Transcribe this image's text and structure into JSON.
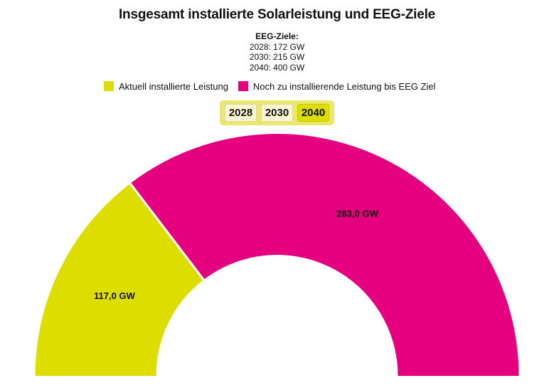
{
  "chart_data": {
    "type": "pie",
    "variant": "semi-donut",
    "title": "Insgesamt installierte Solarleistung und EEG-Ziele",
    "subtitle": {
      "heading": "EEG-Ziele:",
      "lines": [
        "2028: 172 GW",
        "2030: 215 GW",
        "2040: 400 GW"
      ]
    },
    "unit": "GW",
    "selected_target_year": "2040",
    "target_total": 400,
    "categories": [
      "Aktuell installierte Leistung",
      "Noch zu installierende Leistung bis EEG Ziel"
    ],
    "values": [
      117.0,
      283.0
    ],
    "value_labels": [
      "117,0 GW",
      "283,0 GW"
    ],
    "colors": [
      "#dedd00",
      "#e5007f"
    ],
    "legend_position": "top",
    "start_angle_deg": -90,
    "end_angle_deg": 90
  },
  "header": {
    "title": "Insgesamt installierte Solarleistung und EEG-Ziele",
    "subtitle_heading": "EEG-Ziele:",
    "subtitle_lines": [
      "2028: 172 GW",
      "2030: 215 GW",
      "2040: 400 GW"
    ]
  },
  "legend": {
    "items": [
      {
        "label": "Aktuell installierte Leistung",
        "color": "#dedd00"
      },
      {
        "label": "Noch zu installierende Leistung bis EEG Ziel",
        "color": "#e5007f"
      }
    ]
  },
  "year_switch": {
    "options": [
      {
        "label": "2028",
        "active": false
      },
      {
        "label": "2030",
        "active": false
      },
      {
        "label": "2040",
        "active": true
      }
    ],
    "background": "#e9e86c",
    "active_color": "#dedd00",
    "inactive_color": "#fbf7d2"
  },
  "segments": [
    {
      "label": "117,0 GW",
      "color": "#dedd00"
    },
    {
      "label": "283,0 GW",
      "color": "#e5007f"
    }
  ]
}
